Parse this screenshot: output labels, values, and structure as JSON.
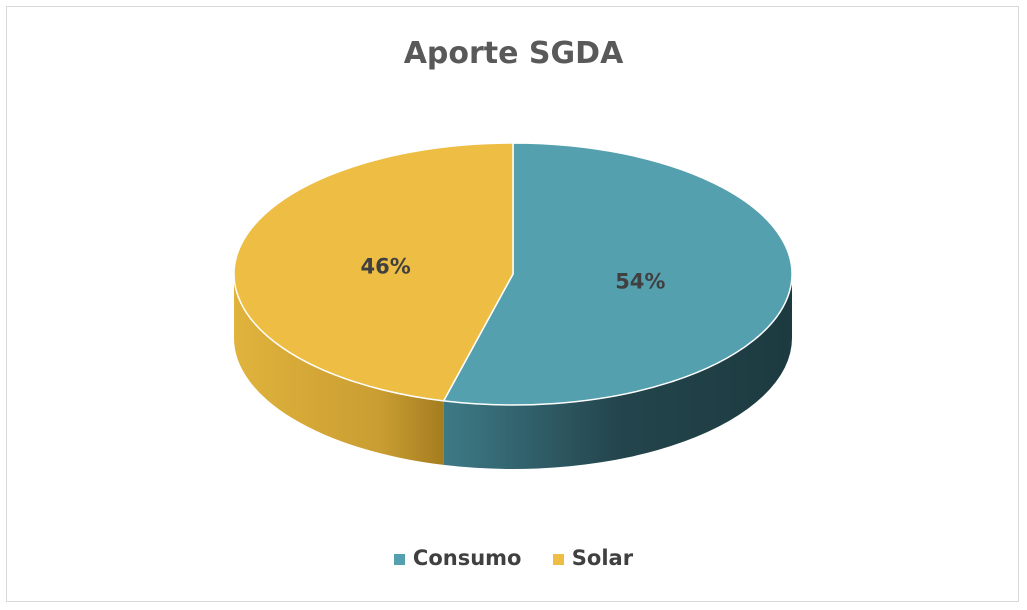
{
  "chart_data": {
    "type": "pie",
    "title": "Aporte SGDA",
    "categories": [
      "Consumo",
      "Solar"
    ],
    "values": [
      54,
      46
    ],
    "labels": [
      "54%",
      "46%"
    ],
    "colors": [
      "#54A0AF",
      "#EEBE44"
    ],
    "side_colors": [
      "#2B5660",
      "#C89A2C"
    ],
    "legend_position": "bottom",
    "three_d": true
  }
}
